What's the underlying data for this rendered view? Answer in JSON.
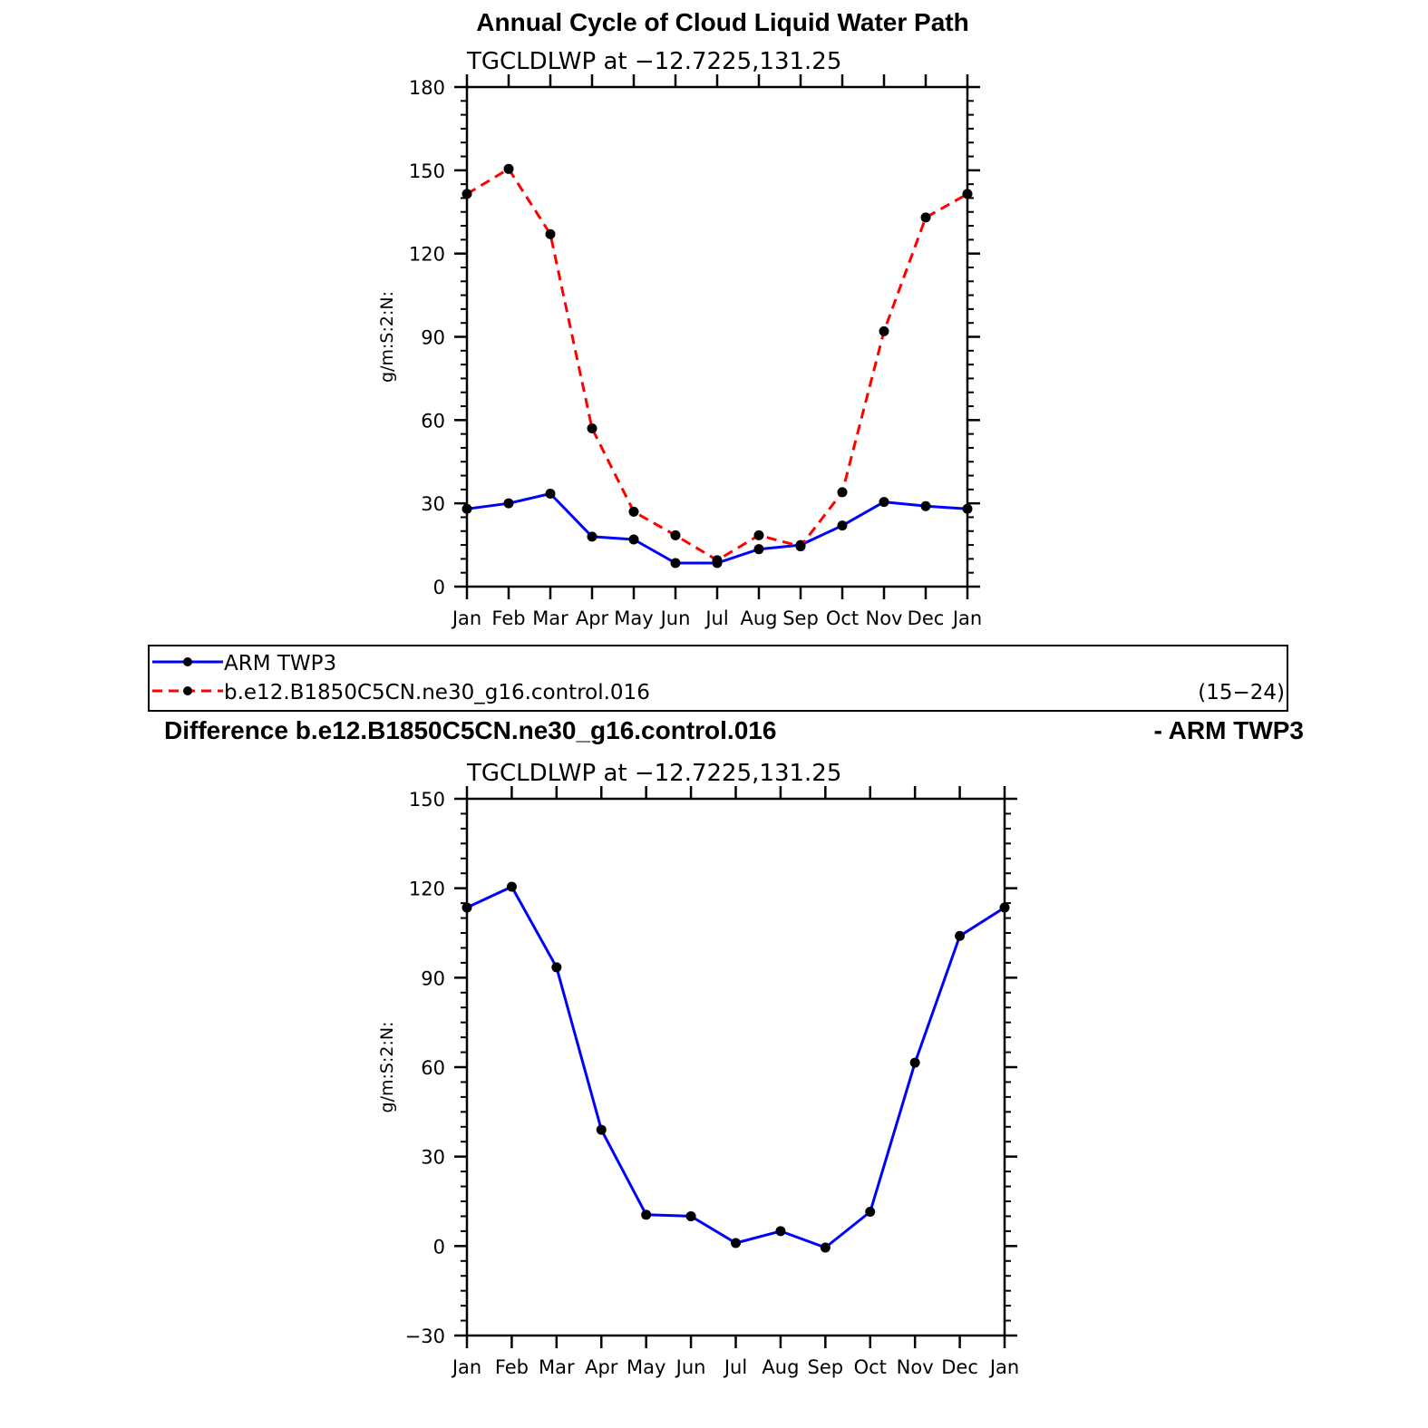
{
  "figure": {
    "main_title": "Annual Cycle of Cloud Liquid Water Path",
    "diff_title_left": "Difference b.e12.B1850C5CN.ne30_g16.control.016",
    "diff_title_right": "- ARM TWP3"
  },
  "legend": {
    "entries": [
      {
        "label": "ARM TWP3",
        "color": "#0000ff",
        "dash": "solid"
      },
      {
        "label": "b.e12.B1850C5CN.ne30_g16.control.016",
        "color": "#ff0000",
        "dash": "dashed"
      }
    ],
    "years": "(15−24)"
  },
  "chart_data": [
    {
      "type": "line",
      "subtitle": "TGCLDLWP at −12.7225,131.25",
      "ylabel": "g/m:S:2:N:",
      "categories": [
        "Jan",
        "Feb",
        "Mar",
        "Apr",
        "May",
        "Jun",
        "Jul",
        "Aug",
        "Sep",
        "Oct",
        "Nov",
        "Dec",
        "Jan"
      ],
      "ylim": [
        0,
        180
      ],
      "yticks": [
        "0",
        "30",
        "60",
        "90",
        "120",
        "150",
        "180"
      ],
      "series": [
        {
          "name": "ARM TWP3",
          "color": "#0000ff",
          "dash": "solid",
          "values": [
            28,
            30,
            33.5,
            18,
            17,
            8.5,
            8.5,
            13.5,
            15,
            22,
            30.5,
            29,
            28
          ]
        },
        {
          "name": "b.e12.B1850C5CN.ne30_g16.control.016",
          "color": "#ff0000",
          "dash": "dashed",
          "values": [
            141.5,
            150.5,
            127,
            57,
            27,
            18.5,
            9.5,
            18.5,
            14.5,
            34,
            92,
            133,
            141.5
          ]
        }
      ]
    },
    {
      "type": "line",
      "subtitle": "TGCLDLWP at −12.7225,131.25",
      "ylabel": "g/m:S:2:N:",
      "categories": [
        "Jan",
        "Feb",
        "Mar",
        "Apr",
        "May",
        "Jun",
        "Jul",
        "Aug",
        "Sep",
        "Oct",
        "Nov",
        "Dec",
        "Jan"
      ],
      "ylim": [
        -30,
        150
      ],
      "yticks": [
        "−30",
        "0",
        "30",
        "60",
        "90",
        "120",
        "150"
      ],
      "series": [
        {
          "color": "#0000ff",
          "dash": "solid",
          "values": [
            113.5,
            120.5,
            93.5,
            39,
            10.5,
            10,
            1,
            5,
            -0.5,
            11.5,
            61.5,
            104,
            113.5
          ]
        }
      ]
    }
  ]
}
